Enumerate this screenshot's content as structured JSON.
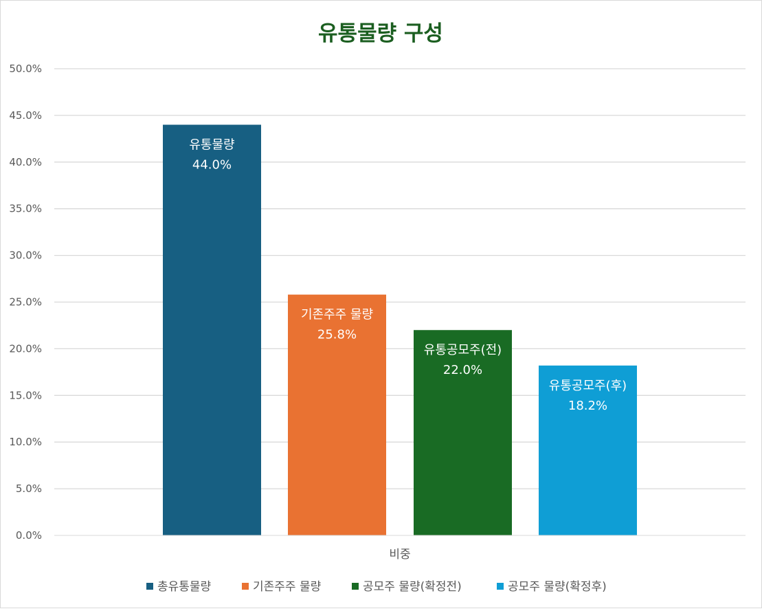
{
  "chart_data": {
    "type": "bar",
    "title": "유통물량 구성",
    "title_color": "#1b5e20",
    "categories": [
      "비중"
    ],
    "ylim": [
      0,
      0.5
    ],
    "yticks": [
      "0.0%",
      "5.0%",
      "10.0%",
      "15.0%",
      "20.0%",
      "25.0%",
      "30.0%",
      "35.0%",
      "40.0%",
      "45.0%",
      "50.0%"
    ],
    "grid": true,
    "legend_position": "bottom",
    "series": [
      {
        "name": "총유통물량",
        "values": [
          0.44
        ],
        "color": "#175f82",
        "data_label": "유통물량",
        "value_label": "44.0%"
      },
      {
        "name": "기존주주 물량",
        "values": [
          0.258
        ],
        "color": "#e97232",
        "data_label": "기존주주 물량",
        "value_label": "25.8%"
      },
      {
        "name": "공모주 물량(확정전)",
        "values": [
          0.22
        ],
        "color": "#196b24",
        "data_label": "유통공모주(전)",
        "value_label": "22.0%"
      },
      {
        "name": "공모주 물량(확정후)",
        "values": [
          0.182
        ],
        "color": "#0f9ed5",
        "data_label": "유통공모주(후)",
        "value_label": "18.2%"
      }
    ]
  }
}
